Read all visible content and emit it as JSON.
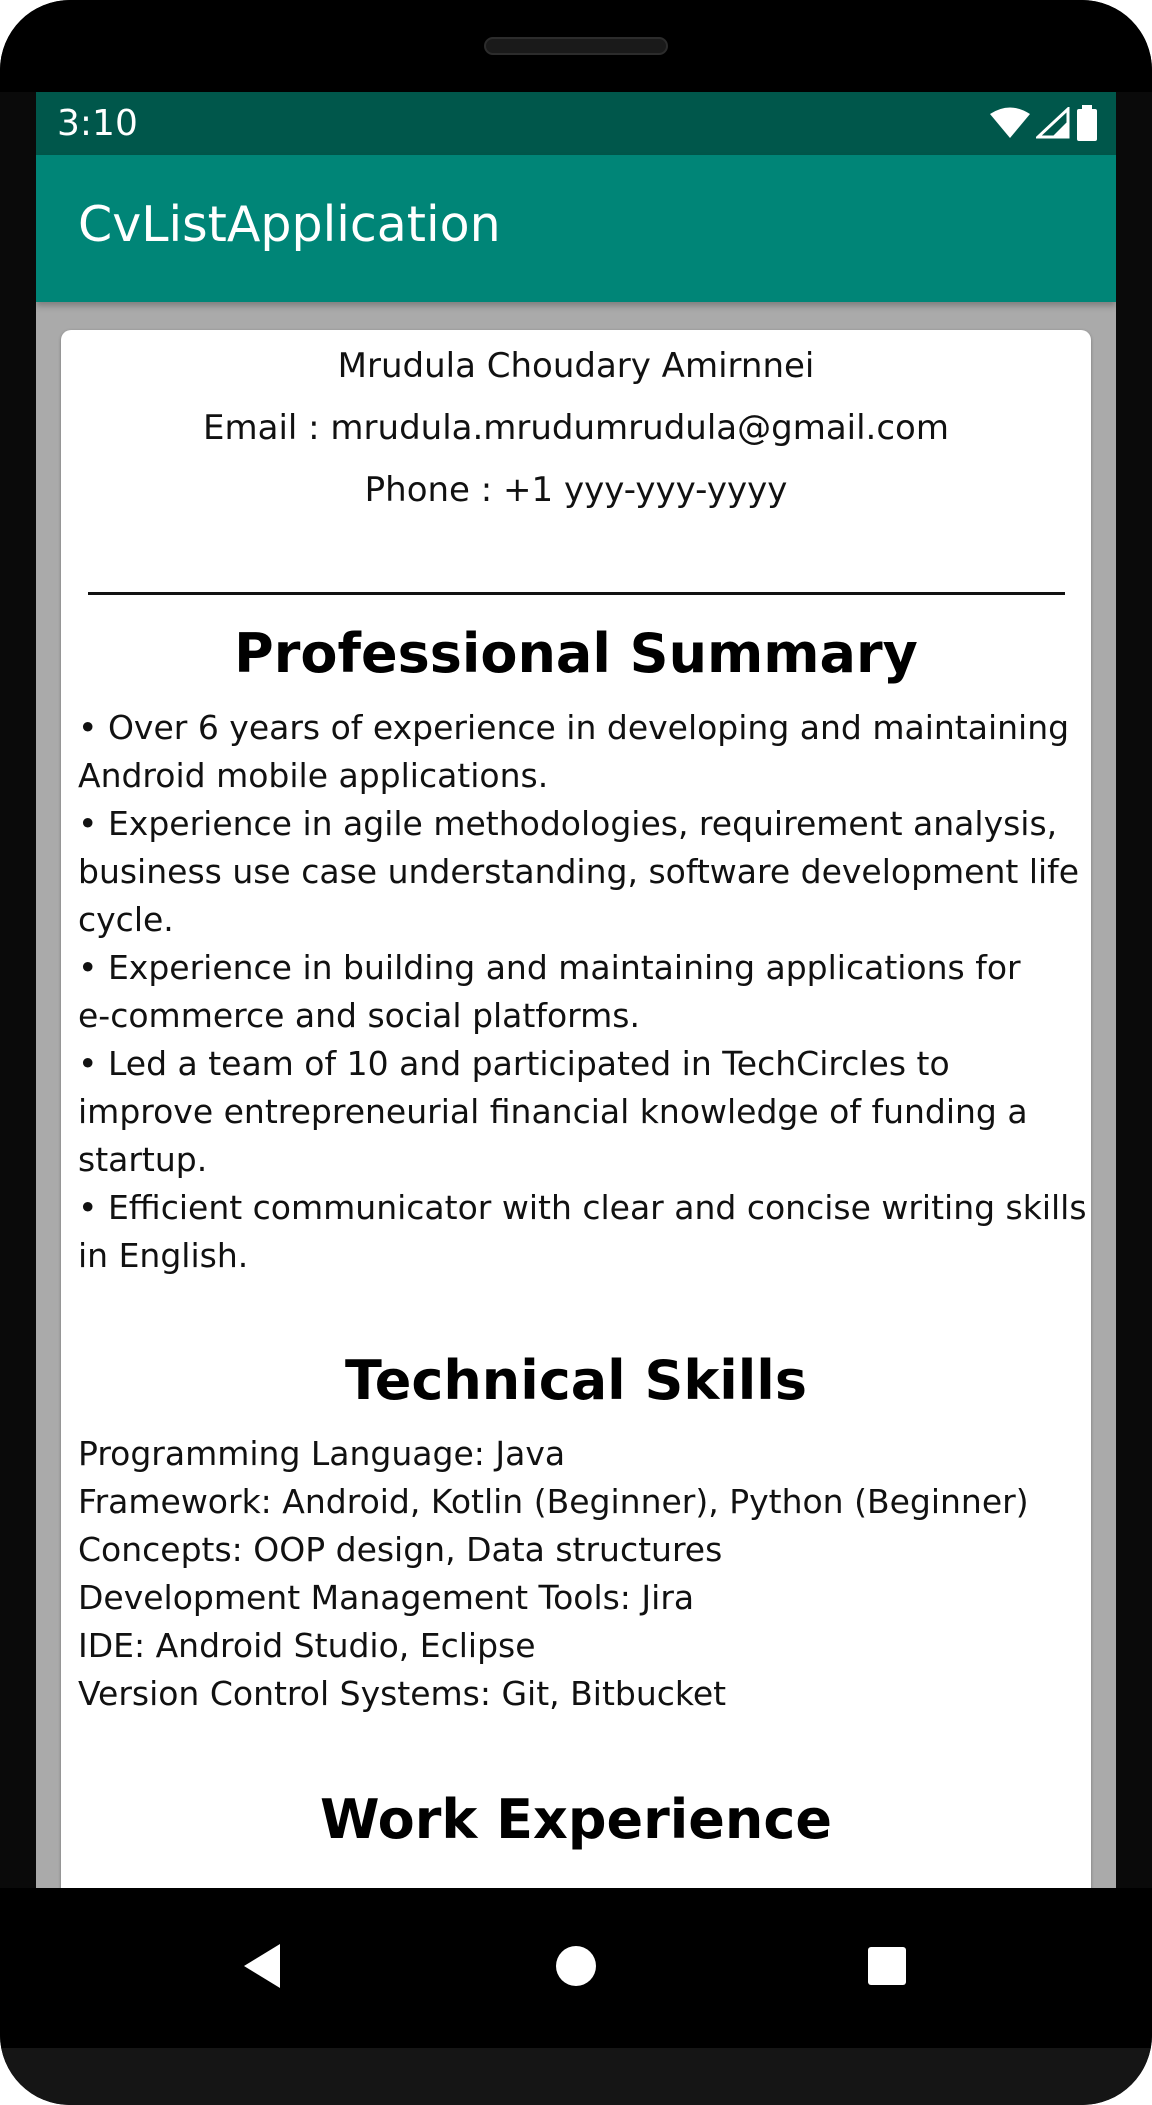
{
  "status_bar": {
    "time": "3:10",
    "icons": [
      "wifi-icon",
      "cell-signal-icon",
      "battery-icon"
    ]
  },
  "app_bar": {
    "title": "CvListApplication"
  },
  "resume": {
    "name": "Mrudula Choudary Amirnnei",
    "email": "Email : mrudula.mrudumrudula@gmail.com",
    "phone": "Phone : +1 yyy-yyy-yyyy",
    "sections": [
      {
        "title": "Professional Summary",
        "lines": [
          "• Over 6 years of experience in developing and maintaining",
          "Android mobile applications.",
          "• Experience in agile methodologies, requirement analysis,",
          "business use case understanding, software development life",
          "cycle.",
          "• Experience in building and maintaining applications for",
          "e-commerce and social platforms.",
          "• Led a team of 10 and participated in TechCircles to",
          "improve entrepreneurial financial knowledge of funding a",
          "startup.",
          "• Efficient communicator with clear and concise writing skills",
          "in English."
        ]
      },
      {
        "title": "Technical Skills",
        "lines": [
          "Programming Language: Java",
          "Framework: Android, Kotlin (Beginner), Python (Beginner)",
          "Concepts: OOP design, Data structures",
          "Development Management Tools: Jira",
          "IDE: Android Studio, Eclipse",
          "Version Control Systems: Git, Bitbucket"
        ]
      },
      {
        "title": "Work Experience",
        "lines": []
      }
    ]
  },
  "nav_bar": {
    "buttons": [
      "back-icon",
      "home-icon",
      "recents-icon"
    ]
  },
  "colors": {
    "status_bar": "#00574b",
    "app_bar": "#008577",
    "screen_background": "#aaaaaa",
    "card": "#ffffff"
  }
}
